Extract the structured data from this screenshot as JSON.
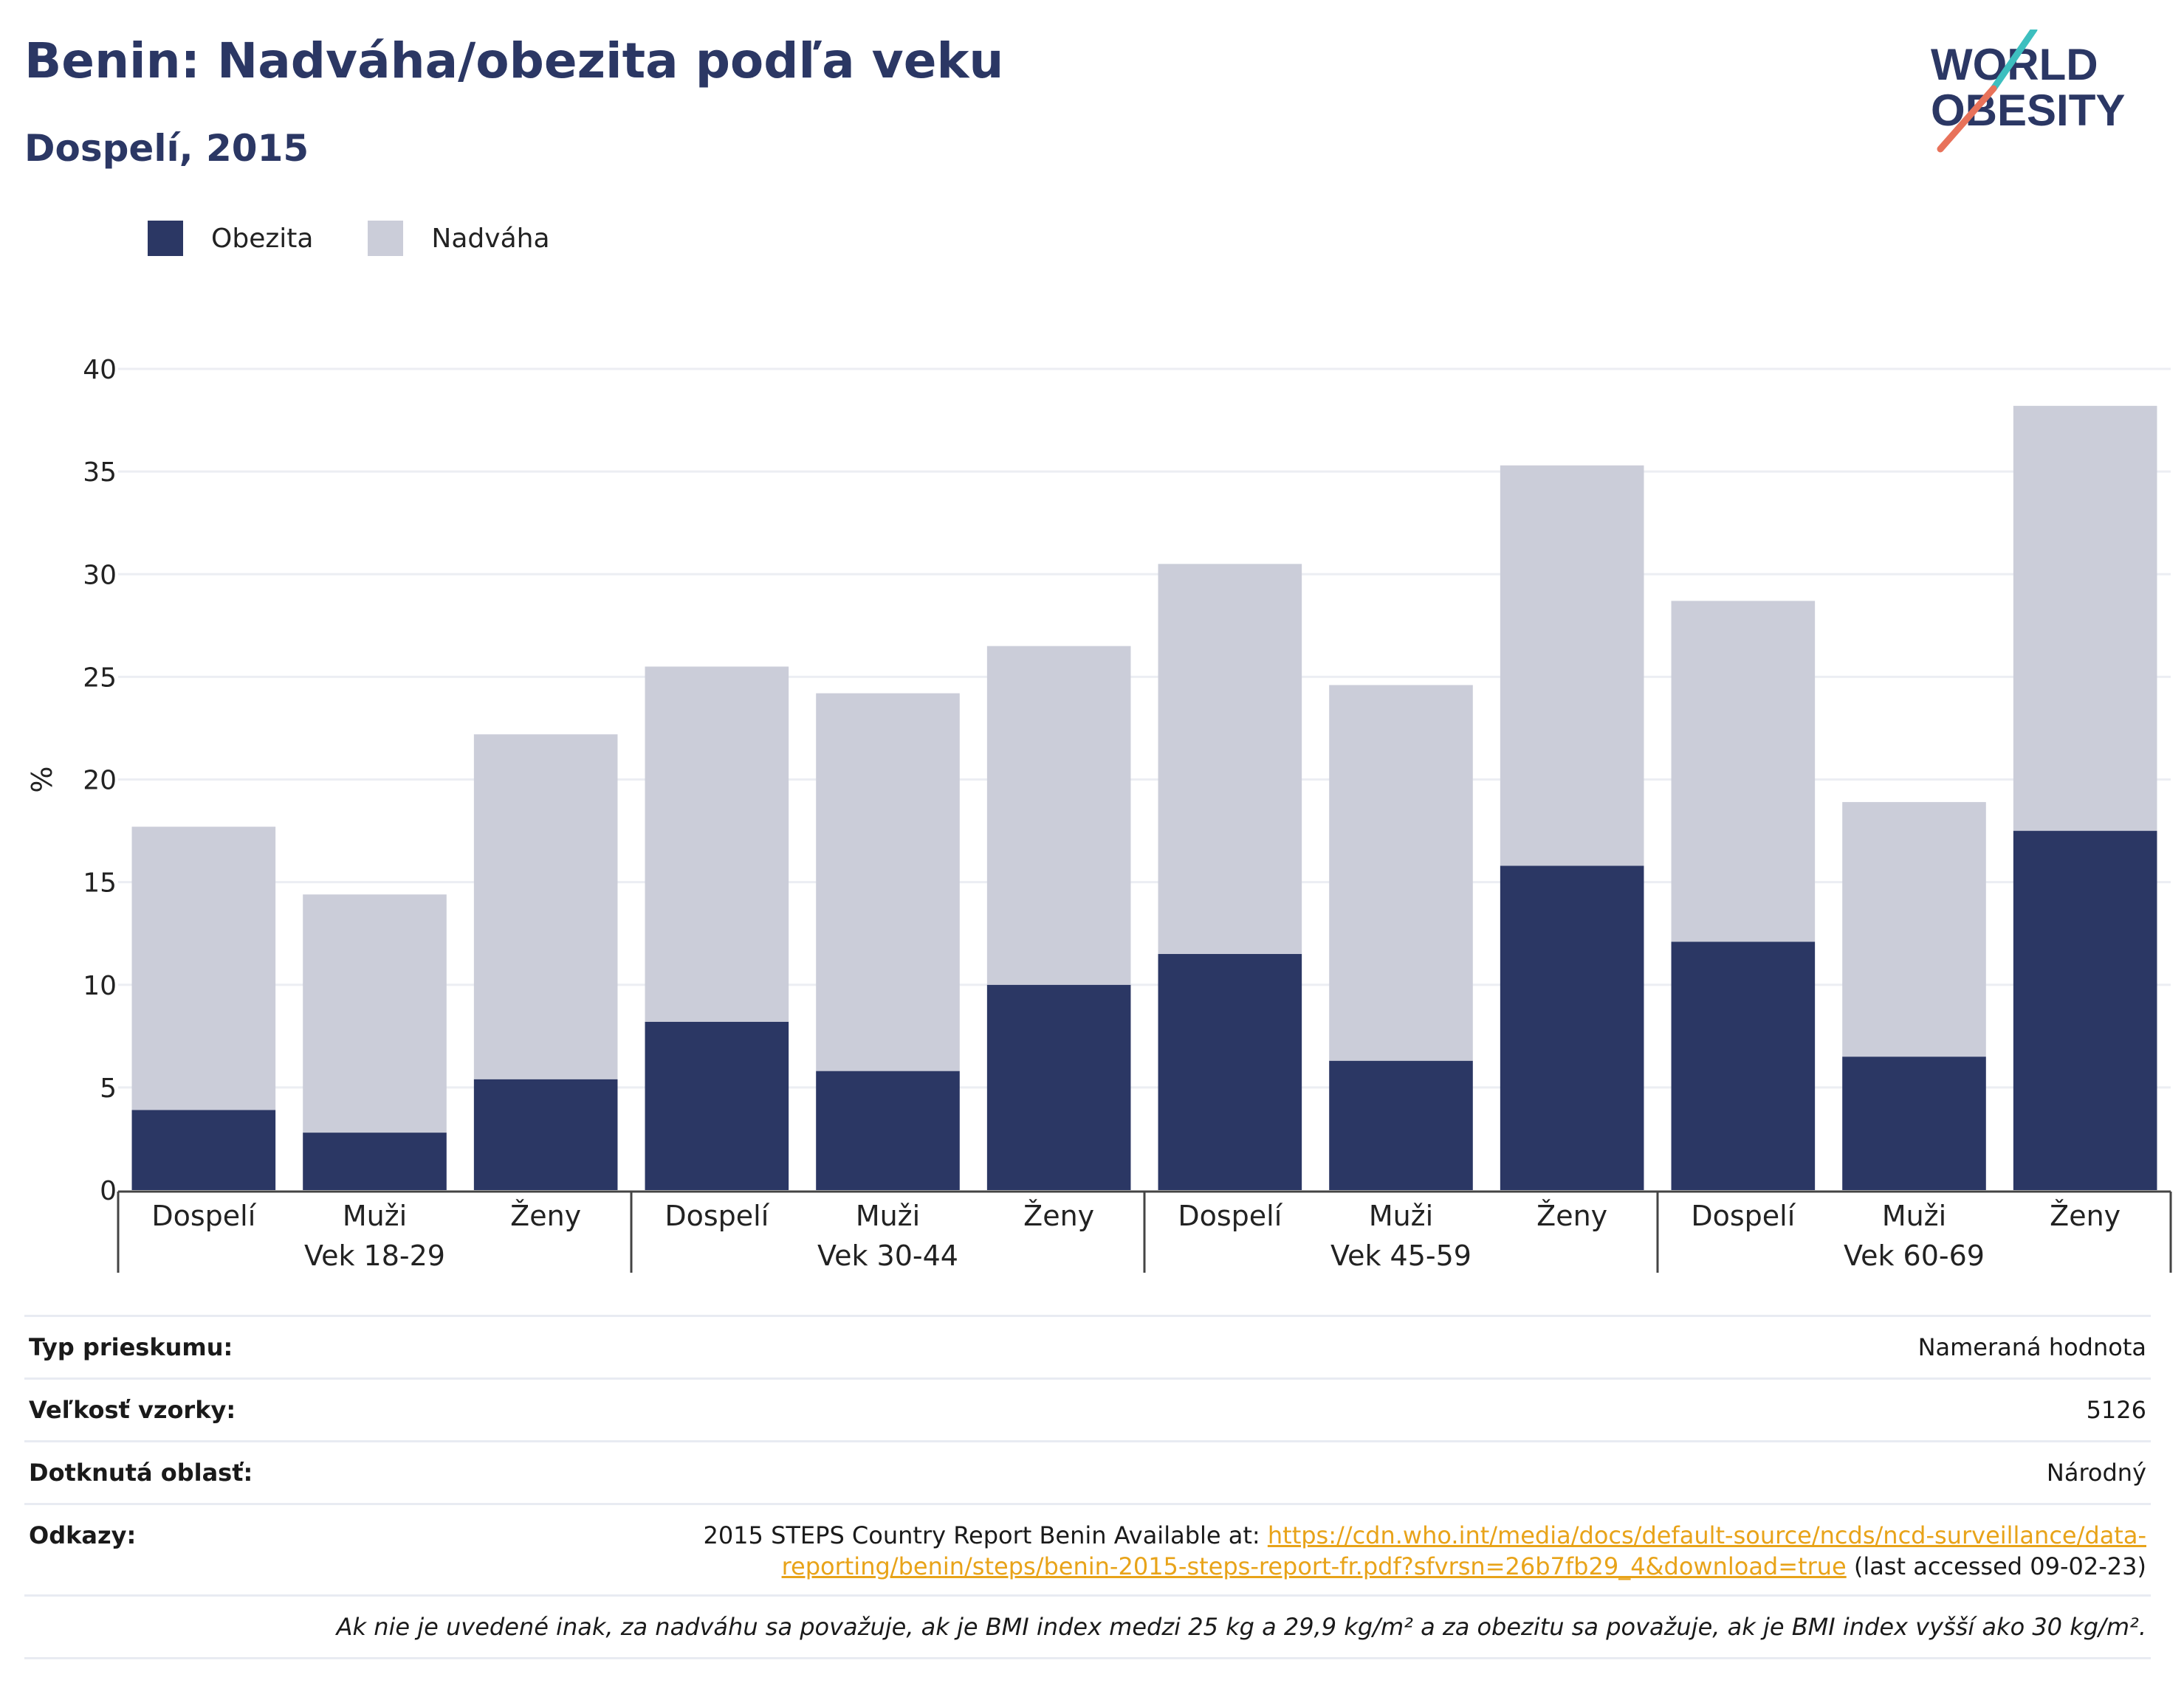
{
  "title": "Benin: Nadváha/obezita podľa veku",
  "subtitle": "Dospelí, 2015",
  "logo": {
    "line1": "WORLD",
    "line2": "OBESITY",
    "accent_teal": "#3dbfbf",
    "accent_coral": "#e8725a"
  },
  "colors": {
    "obesity": "#2b3764",
    "overweight": "#cbcdd9",
    "title": "#2b3764",
    "link": "#e8a319"
  },
  "chart_data": {
    "type": "bar",
    "stacked": true,
    "ylabel": "%",
    "ylim": [
      0,
      40
    ],
    "yticks": [
      0,
      5,
      10,
      15,
      20,
      25,
      30,
      35,
      40
    ],
    "grid": true,
    "legend_position": "top-left",
    "groups": [
      "Vek 18-29",
      "Vek 30-44",
      "Vek 45-59",
      "Vek 60-69"
    ],
    "categories": [
      "Dospelí",
      "Muži",
      "Ženy",
      "Dospelí",
      "Muži",
      "Ženy",
      "Dospelí",
      "Muži",
      "Ženy",
      "Dospelí",
      "Muži",
      "Ženy"
    ],
    "series": [
      {
        "name": "Obezita",
        "values": [
          3.9,
          2.8,
          5.4,
          8.2,
          5.8,
          10.0,
          11.5,
          6.3,
          15.8,
          12.1,
          6.5,
          17.5
        ]
      },
      {
        "name": "Nadváha",
        "values": [
          13.8,
          11.6,
          16.8,
          17.3,
          18.4,
          16.5,
          19.0,
          18.3,
          19.5,
          16.6,
          12.4,
          20.7
        ]
      }
    ]
  },
  "info": {
    "rows": [
      {
        "label": "Typ prieskumu:",
        "value": "Nameraná hodnota"
      },
      {
        "label": "Veľkosť vzorky:",
        "value": "5126"
      },
      {
        "label": "Dotknutá oblasť:",
        "value": "Národný"
      }
    ],
    "references": {
      "label": "Odkazy:",
      "prefix": "2015 STEPS Country Report Benin Available at:",
      "link_line1": "https://cdn.who.int/media/docs/default-source/ncds/ncd-surveillance/data-",
      "link_line2": "reporting/benin/steps/benin-2015-steps-report-fr.pdf?sfvrsn=26b7fb29_4&download=true",
      "suffix": "(last accessed 09-02-23)"
    },
    "note": "Ak nie je uvedené inak, za nadváhu sa považuje, ak je BMI index medzi 25 kg a 29,9 kg/m² a za obezitu sa považuje, ak je BMI index vyšší ako 30 kg/m²."
  }
}
